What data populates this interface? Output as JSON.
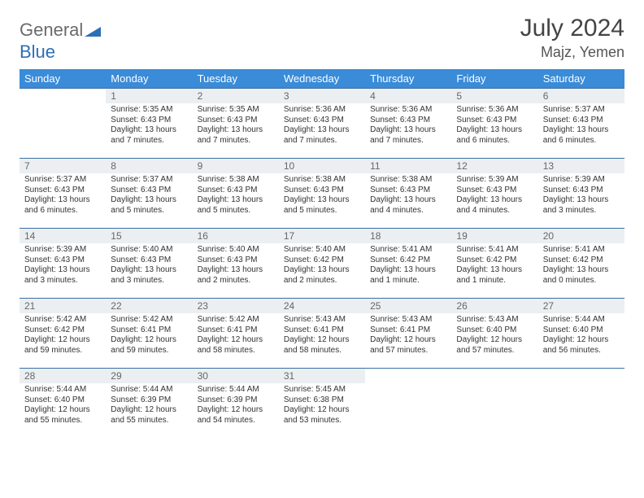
{
  "brand": {
    "general": "General",
    "blue": "Blue",
    "logo_color": "#2d6fb5"
  },
  "title": "July 2024",
  "location": "Majz, Yemen",
  "colors": {
    "header_bg": "#3a8bd8",
    "header_text": "#ffffff",
    "daynum_bg": "#eceff1",
    "row_border": "#3a6fa5",
    "text": "#333333",
    "background": "#ffffff"
  },
  "weekdays": [
    "Sunday",
    "Monday",
    "Tuesday",
    "Wednesday",
    "Thursday",
    "Friday",
    "Saturday"
  ],
  "weeks": [
    [
      null,
      {
        "n": "1",
        "sr": "Sunrise: 5:35 AM",
        "ss": "Sunset: 6:43 PM",
        "dl": "Daylight: 13 hours and 7 minutes."
      },
      {
        "n": "2",
        "sr": "Sunrise: 5:35 AM",
        "ss": "Sunset: 6:43 PM",
        "dl": "Daylight: 13 hours and 7 minutes."
      },
      {
        "n": "3",
        "sr": "Sunrise: 5:36 AM",
        "ss": "Sunset: 6:43 PM",
        "dl": "Daylight: 13 hours and 7 minutes."
      },
      {
        "n": "4",
        "sr": "Sunrise: 5:36 AM",
        "ss": "Sunset: 6:43 PM",
        "dl": "Daylight: 13 hours and 7 minutes."
      },
      {
        "n": "5",
        "sr": "Sunrise: 5:36 AM",
        "ss": "Sunset: 6:43 PM",
        "dl": "Daylight: 13 hours and 6 minutes."
      },
      {
        "n": "6",
        "sr": "Sunrise: 5:37 AM",
        "ss": "Sunset: 6:43 PM",
        "dl": "Daylight: 13 hours and 6 minutes."
      }
    ],
    [
      {
        "n": "7",
        "sr": "Sunrise: 5:37 AM",
        "ss": "Sunset: 6:43 PM",
        "dl": "Daylight: 13 hours and 6 minutes."
      },
      {
        "n": "8",
        "sr": "Sunrise: 5:37 AM",
        "ss": "Sunset: 6:43 PM",
        "dl": "Daylight: 13 hours and 5 minutes."
      },
      {
        "n": "9",
        "sr": "Sunrise: 5:38 AM",
        "ss": "Sunset: 6:43 PM",
        "dl": "Daylight: 13 hours and 5 minutes."
      },
      {
        "n": "10",
        "sr": "Sunrise: 5:38 AM",
        "ss": "Sunset: 6:43 PM",
        "dl": "Daylight: 13 hours and 5 minutes."
      },
      {
        "n": "11",
        "sr": "Sunrise: 5:38 AM",
        "ss": "Sunset: 6:43 PM",
        "dl": "Daylight: 13 hours and 4 minutes."
      },
      {
        "n": "12",
        "sr": "Sunrise: 5:39 AM",
        "ss": "Sunset: 6:43 PM",
        "dl": "Daylight: 13 hours and 4 minutes."
      },
      {
        "n": "13",
        "sr": "Sunrise: 5:39 AM",
        "ss": "Sunset: 6:43 PM",
        "dl": "Daylight: 13 hours and 3 minutes."
      }
    ],
    [
      {
        "n": "14",
        "sr": "Sunrise: 5:39 AM",
        "ss": "Sunset: 6:43 PM",
        "dl": "Daylight: 13 hours and 3 minutes."
      },
      {
        "n": "15",
        "sr": "Sunrise: 5:40 AM",
        "ss": "Sunset: 6:43 PM",
        "dl": "Daylight: 13 hours and 3 minutes."
      },
      {
        "n": "16",
        "sr": "Sunrise: 5:40 AM",
        "ss": "Sunset: 6:43 PM",
        "dl": "Daylight: 13 hours and 2 minutes."
      },
      {
        "n": "17",
        "sr": "Sunrise: 5:40 AM",
        "ss": "Sunset: 6:42 PM",
        "dl": "Daylight: 13 hours and 2 minutes."
      },
      {
        "n": "18",
        "sr": "Sunrise: 5:41 AM",
        "ss": "Sunset: 6:42 PM",
        "dl": "Daylight: 13 hours and 1 minute."
      },
      {
        "n": "19",
        "sr": "Sunrise: 5:41 AM",
        "ss": "Sunset: 6:42 PM",
        "dl": "Daylight: 13 hours and 1 minute."
      },
      {
        "n": "20",
        "sr": "Sunrise: 5:41 AM",
        "ss": "Sunset: 6:42 PM",
        "dl": "Daylight: 13 hours and 0 minutes."
      }
    ],
    [
      {
        "n": "21",
        "sr": "Sunrise: 5:42 AM",
        "ss": "Sunset: 6:42 PM",
        "dl": "Daylight: 12 hours and 59 minutes."
      },
      {
        "n": "22",
        "sr": "Sunrise: 5:42 AM",
        "ss": "Sunset: 6:41 PM",
        "dl": "Daylight: 12 hours and 59 minutes."
      },
      {
        "n": "23",
        "sr": "Sunrise: 5:42 AM",
        "ss": "Sunset: 6:41 PM",
        "dl": "Daylight: 12 hours and 58 minutes."
      },
      {
        "n": "24",
        "sr": "Sunrise: 5:43 AM",
        "ss": "Sunset: 6:41 PM",
        "dl": "Daylight: 12 hours and 58 minutes."
      },
      {
        "n": "25",
        "sr": "Sunrise: 5:43 AM",
        "ss": "Sunset: 6:41 PM",
        "dl": "Daylight: 12 hours and 57 minutes."
      },
      {
        "n": "26",
        "sr": "Sunrise: 5:43 AM",
        "ss": "Sunset: 6:40 PM",
        "dl": "Daylight: 12 hours and 57 minutes."
      },
      {
        "n": "27",
        "sr": "Sunrise: 5:44 AM",
        "ss": "Sunset: 6:40 PM",
        "dl": "Daylight: 12 hours and 56 minutes."
      }
    ],
    [
      {
        "n": "28",
        "sr": "Sunrise: 5:44 AM",
        "ss": "Sunset: 6:40 PM",
        "dl": "Daylight: 12 hours and 55 minutes."
      },
      {
        "n": "29",
        "sr": "Sunrise: 5:44 AM",
        "ss": "Sunset: 6:39 PM",
        "dl": "Daylight: 12 hours and 55 minutes."
      },
      {
        "n": "30",
        "sr": "Sunrise: 5:44 AM",
        "ss": "Sunset: 6:39 PM",
        "dl": "Daylight: 12 hours and 54 minutes."
      },
      {
        "n": "31",
        "sr": "Sunrise: 5:45 AM",
        "ss": "Sunset: 6:38 PM",
        "dl": "Daylight: 12 hours and 53 minutes."
      },
      null,
      null,
      null
    ]
  ]
}
